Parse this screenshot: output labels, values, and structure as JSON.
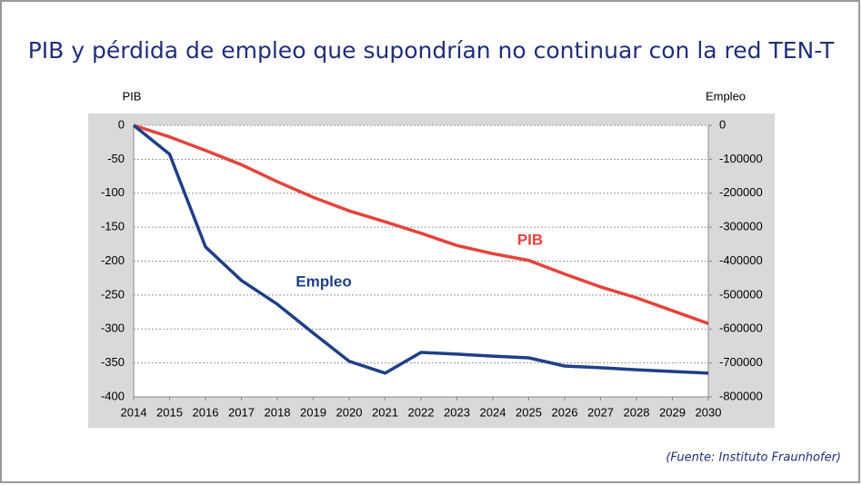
{
  "chart_data": {
    "type": "line",
    "title": "PIB y pérdida de empleo que supondrían no continuar con la red TEN-T",
    "ylabel": "PIB",
    "y2label": "Empleo",
    "source": "(Fuente: Instituto Fraunhofer)",
    "x": [
      2014,
      2015,
      2016,
      2017,
      2018,
      2019,
      2020,
      2021,
      2022,
      2023,
      2024,
      2025,
      2026,
      2027,
      2028,
      2029,
      2030
    ],
    "xlim": [
      2014,
      2030
    ],
    "xticks": [
      2014,
      2015,
      2016,
      2017,
      2018,
      2019,
      2020,
      2021,
      2022,
      2023,
      2024,
      2025,
      2026,
      2027,
      2028,
      2029,
      2030
    ],
    "ylim": [
      -400,
      0
    ],
    "yticks": [
      0,
      -50,
      -100,
      -150,
      -200,
      -250,
      -300,
      -350,
      -400
    ],
    "y2lim": [
      -800000,
      0
    ],
    "y2ticks": [
      0,
      -100000,
      -200000,
      -300000,
      -400000,
      -500000,
      -600000,
      -700000,
      -800000
    ],
    "grid": true,
    "series": [
      {
        "name": "PIB",
        "color": "#e5433a",
        "values": [
          0,
          -17,
          -37,
          -58,
          -83,
          -106,
          -126,
          -142,
          -159,
          -177,
          -189,
          -199,
          -219,
          -238,
          -254,
          -273,
          -292
        ]
      },
      {
        "name": "Empleo",
        "color": "#1f3f86",
        "axis": "y2",
        "values": [
          0,
          -85000,
          -358000,
          -457000,
          -527000,
          -612000,
          -695000,
          -730000,
          -669000,
          -674000,
          -680000,
          -685000,
          -709000,
          -714000,
          -720000,
          -725000,
          -730000
        ]
      }
    ]
  }
}
